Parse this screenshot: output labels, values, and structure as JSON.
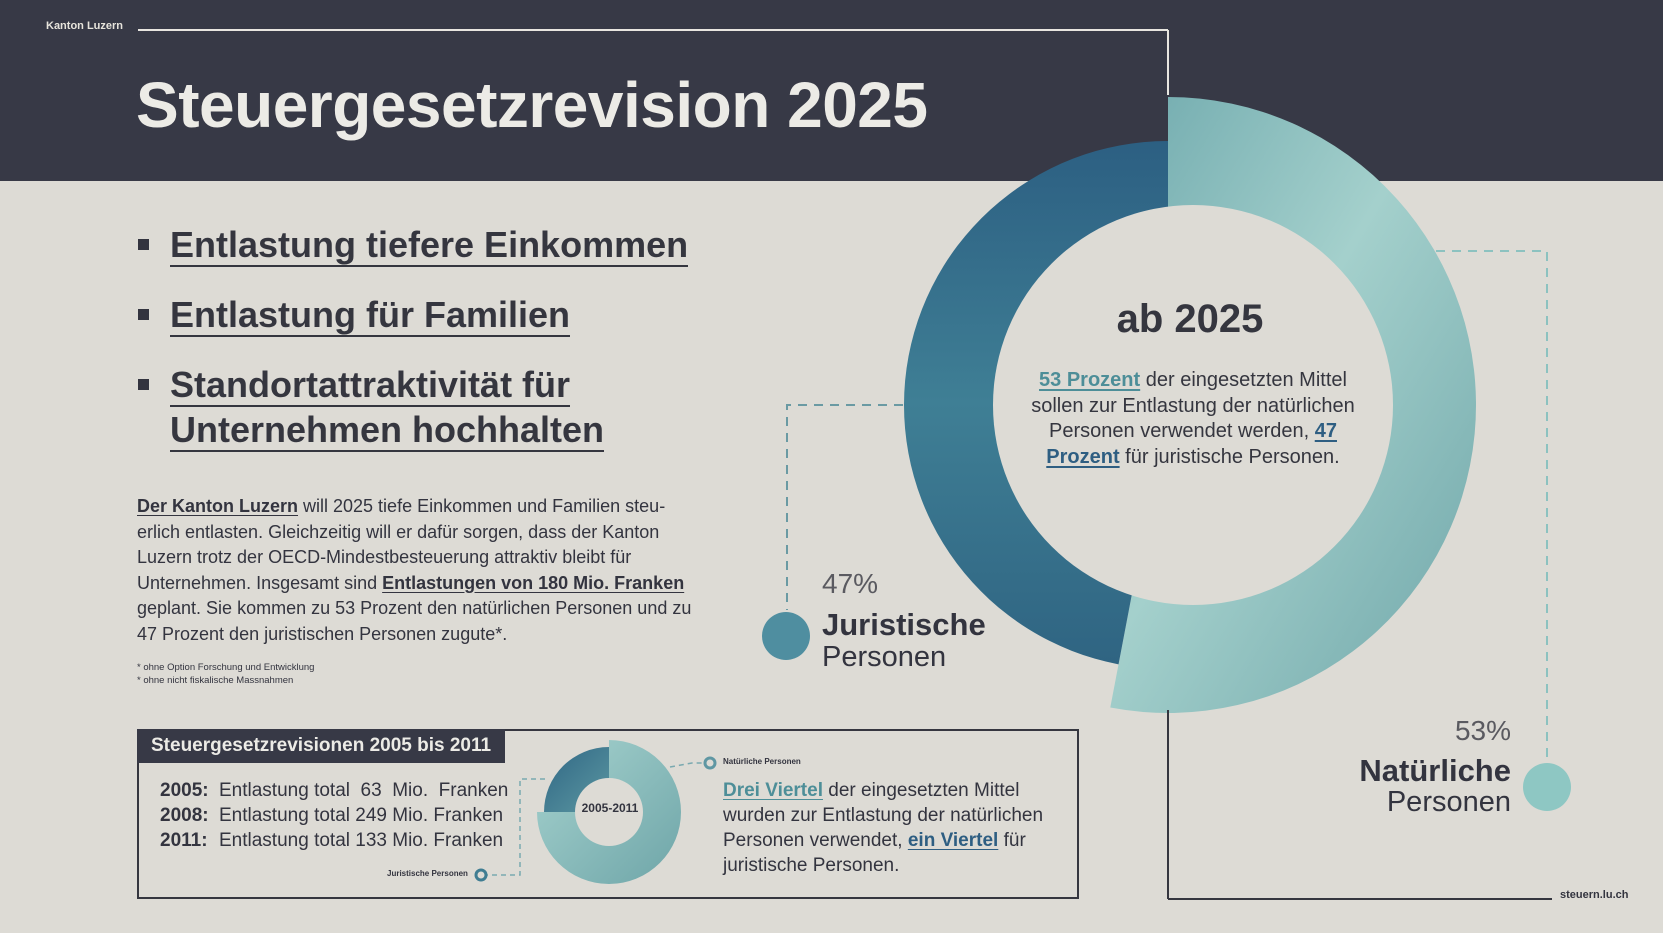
{
  "header": {
    "org": "Kanton Luzern",
    "title": "Steuergesetzrevision 2025"
  },
  "bullets": [
    {
      "lines": [
        "Entlastung tiefere Einkommen"
      ]
    },
    {
      "lines": [
        "Entlastung für Familien"
      ]
    },
    {
      "lines": [
        "Standortattraktivität für",
        "Unternehmen hochhalten"
      ]
    }
  ],
  "intro": {
    "part1_em": "Der Kanton Luzern",
    "part2": " will 2025 tiefe Einkommen und Familien steu­erlich entlasten. Gleichzeitig will er dafür sorgen, dass der Kanton Luzern trotz der OECD-Mindestbesteuerung attraktiv bleibt für Unternehmen. Insgesamt sind ",
    "part3_em": "Entlastungen von 180 Mio. Franken",
    "part4": " geplant. Sie kommen zu 53 Prozent den natürlichen Personen und zu 47 Prozent den juristischen Personen zugute*."
  },
  "footnotes": [
    "* ohne Option Forschung und Entwicklung",
    "* ohne nicht fiskalische Massnahmen"
  ],
  "history": {
    "title": "Steuergesetzrevisionen 2005 bis 2011",
    "rows": [
      {
        "year": "2005:",
        "text": "Entlastung total  63  Mio.  Franken"
      },
      {
        "year": "2008:",
        "text": "Entlastung total 249 Mio. Franken"
      },
      {
        "year": "2011:",
        "text": "Entlastung total 133 Mio. Franken"
      }
    ],
    "desc": {
      "hl1": "Drei Viertel",
      "t1": " der eingesetzten Mittel wurden zur Entlastung der natürli­chen Personen verwendet, ",
      "hl2": "ein Viertel",
      "t2": " für juristische Personen."
    }
  },
  "big_donut": {
    "center_title": "ab 2025",
    "desc": {
      "hl1": "53 Prozent",
      "t1": " der eingesetzten Mittel sollen zur Entlastung der natürlichen Personen verwendet werden, ",
      "hl2": "47 Prozent",
      "t2": " für juristische Personen."
    },
    "jur": {
      "pct": "47%",
      "label1": "Juristische",
      "label2": "Personen"
    },
    "nat": {
      "pct": "53%",
      "label1": "Natürliche",
      "label2": "Personen"
    }
  },
  "footer": {
    "website": "steuern.lu.ch"
  },
  "colors": {
    "header_bg": "#373946",
    "page_bg": "#dddbd5",
    "teal_light": "#9fcfcc",
    "teal_dark": "#3a7e92",
    "blue_dark": "#2c5f82"
  },
  "chart_data": [
    {
      "type": "pie",
      "title": "ab 2025",
      "categories": [
        "Natürliche Personen",
        "Juristische Personen"
      ],
      "values": [
        53,
        47
      ],
      "unit": "%"
    },
    {
      "type": "pie",
      "title": "2005-2011",
      "categories": [
        "Natürliche Personen",
        "Juristische Personen"
      ],
      "values": [
        75,
        25
      ],
      "unit": "%"
    }
  ]
}
